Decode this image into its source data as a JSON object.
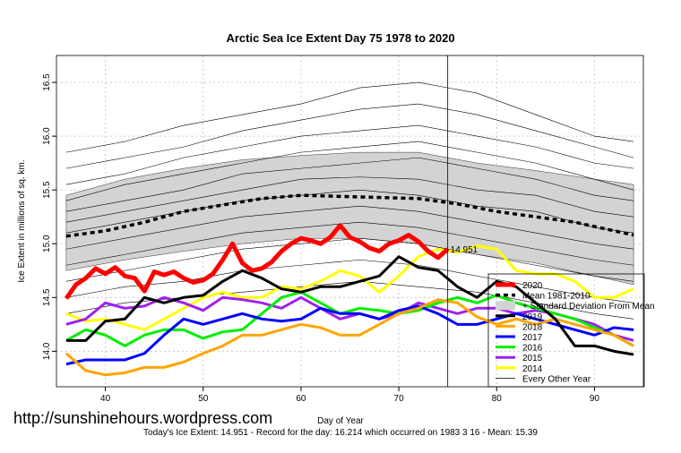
{
  "chart_data": {
    "type": "line",
    "title": "Arctic Sea Ice Extent Day 75 1978 to 2020",
    "xlabel": "Day of Year",
    "ylabel": "Ice Extent in millions of sq. km.",
    "xlim": [
      35,
      95
    ],
    "ylim": [
      13.67,
      16.75
    ],
    "xticks": [
      "40",
      "50",
      "60",
      "70",
      "80",
      "90"
    ],
    "yticks": [
      "14.0",
      "14.5",
      "15.0",
      "15.5",
      "16.0",
      "16.5"
    ],
    "grid": true,
    "marker_day": 75,
    "annotation": "14.951",
    "legend_position": "bottom-right",
    "legend": [
      "2020",
      "Mean 1981-2010",
      "+ Standard Deviation From Mean",
      "2019",
      "2018",
      "2017",
      "2016",
      "2015",
      "2014",
      "Every Other Year"
    ],
    "colors": {
      "2020": "#ff0000",
      "mean": "#000000",
      "band": "#d3d3d3",
      "2019": "#000000",
      "2018": "#ffa500",
      "2017": "#0000ff",
      "2016": "#00ee00",
      "2015": "#a020f0",
      "2014": "#ffff00",
      "other": "#000000"
    },
    "series": [
      {
        "name": "2020",
        "x": [
          36,
          37,
          38,
          39,
          40,
          41,
          42,
          43,
          44,
          45,
          46,
          47,
          48,
          49,
          50,
          51,
          52,
          53,
          54,
          55,
          56,
          57,
          58,
          59,
          60,
          61,
          62,
          63,
          64,
          65,
          66,
          67,
          68,
          69,
          70,
          71,
          72,
          73,
          74,
          75
        ],
        "values": [
          14.49,
          14.62,
          14.68,
          14.77,
          14.72,
          14.78,
          14.7,
          14.68,
          14.56,
          14.74,
          14.71,
          14.74,
          14.68,
          14.64,
          14.66,
          14.72,
          14.85,
          15.0,
          14.82,
          14.75,
          14.77,
          14.83,
          14.93,
          15.0,
          15.05,
          15.03,
          15.0,
          15.06,
          15.17,
          15.06,
          15.02,
          14.96,
          14.93,
          15.0,
          15.03,
          15.08,
          15.02,
          14.93,
          14.87,
          14.95
        ]
      },
      {
        "name": "Mean 1981-2010",
        "x": [
          36,
          40,
          44,
          48,
          52,
          56,
          60,
          64,
          68,
          72,
          76,
          80,
          84,
          88,
          92,
          94
        ],
        "values": [
          15.07,
          15.12,
          15.2,
          15.3,
          15.36,
          15.42,
          15.45,
          15.44,
          15.43,
          15.42,
          15.37,
          15.3,
          15.25,
          15.2,
          15.12,
          15.08
        ]
      },
      {
        "name": "Std band upper",
        "x": [
          36,
          42,
          48,
          54,
          60,
          66,
          72,
          78,
          84,
          90,
          94
        ],
        "values": [
          15.45,
          15.6,
          15.7,
          15.78,
          15.82,
          15.85,
          15.85,
          15.75,
          15.68,
          15.6,
          15.55
        ]
      },
      {
        "name": "Std band lower",
        "x": [
          36,
          42,
          48,
          54,
          60,
          66,
          72,
          78,
          84,
          90,
          94
        ],
        "values": [
          14.75,
          14.85,
          14.93,
          15.0,
          15.05,
          15.05,
          15.0,
          14.9,
          14.82,
          14.7,
          14.62
        ]
      },
      {
        "name": "2019",
        "x": [
          36,
          38,
          40,
          42,
          44,
          46,
          48,
          50,
          52,
          54,
          56,
          58,
          60,
          62,
          64,
          66,
          68,
          70,
          72,
          74,
          76,
          78,
          80,
          82,
          84,
          86,
          88,
          90,
          92,
          94
        ],
        "values": [
          14.1,
          14.1,
          14.28,
          14.3,
          14.5,
          14.45,
          14.5,
          14.52,
          14.65,
          14.75,
          14.68,
          14.58,
          14.55,
          14.6,
          14.6,
          14.65,
          14.7,
          14.88,
          14.78,
          14.75,
          14.6,
          14.5,
          14.65,
          14.6,
          14.45,
          14.3,
          14.05,
          14.05,
          14.0,
          13.97
        ]
      },
      {
        "name": "2018",
        "x": [
          36,
          38,
          40,
          42,
          44,
          46,
          48,
          50,
          52,
          54,
          56,
          58,
          60,
          62,
          64,
          66,
          68,
          70,
          72,
          74,
          76,
          78,
          80,
          82,
          84,
          86,
          88,
          90,
          92,
          94
        ],
        "values": [
          13.98,
          13.82,
          13.78,
          13.8,
          13.85,
          13.85,
          13.9,
          13.98,
          14.05,
          14.15,
          14.15,
          14.2,
          14.25,
          14.22,
          14.15,
          14.15,
          14.25,
          14.35,
          14.4,
          14.48,
          14.45,
          14.32,
          14.25,
          14.3,
          14.25,
          14.3,
          14.25,
          14.2,
          14.15,
          14.05
        ]
      },
      {
        "name": "2017",
        "x": [
          36,
          38,
          40,
          42,
          44,
          46,
          48,
          50,
          52,
          54,
          56,
          58,
          60,
          62,
          64,
          66,
          68,
          70,
          72,
          74,
          76,
          78,
          80,
          82,
          84,
          86,
          88,
          90,
          92,
          94
        ],
        "values": [
          13.88,
          13.92,
          13.92,
          13.92,
          13.98,
          14.15,
          14.3,
          14.25,
          14.3,
          14.35,
          14.3,
          14.28,
          14.3,
          14.4,
          14.35,
          14.35,
          14.3,
          14.38,
          14.42,
          14.35,
          14.25,
          14.25,
          14.3,
          14.35,
          14.3,
          14.25,
          14.2,
          14.15,
          14.22,
          14.2
        ]
      },
      {
        "name": "2016",
        "x": [
          36,
          38,
          40,
          42,
          44,
          46,
          48,
          50,
          52,
          54,
          56,
          58,
          60,
          62,
          64,
          66,
          68,
          70,
          72,
          74,
          76,
          78,
          80,
          82,
          84,
          86,
          88,
          90,
          92,
          94
        ],
        "values": [
          14.1,
          14.2,
          14.15,
          14.05,
          14.15,
          14.2,
          14.2,
          14.12,
          14.18,
          14.2,
          14.35,
          14.5,
          14.55,
          14.45,
          14.35,
          14.4,
          14.38,
          14.35,
          14.38,
          14.45,
          14.5,
          14.45,
          14.52,
          14.45,
          14.4,
          14.35,
          14.3,
          14.22,
          14.15,
          14.05
        ]
      },
      {
        "name": "2015",
        "x": [
          36,
          38,
          40,
          42,
          44,
          46,
          48,
          50,
          52,
          54,
          56,
          58,
          60,
          62,
          64,
          66,
          68,
          70,
          72,
          74,
          76,
          78,
          80,
          82,
          84,
          86,
          88,
          90,
          92,
          94
        ],
        "values": [
          14.25,
          14.3,
          14.45,
          14.4,
          14.42,
          14.5,
          14.45,
          14.38,
          14.5,
          14.48,
          14.45,
          14.4,
          14.5,
          14.4,
          14.3,
          14.35,
          14.3,
          14.35,
          14.45,
          14.4,
          14.35,
          14.4,
          14.4,
          14.35,
          14.38,
          14.35,
          14.3,
          14.25,
          14.15,
          14.1
        ]
      },
      {
        "name": "2014",
        "x": [
          36,
          38,
          40,
          42,
          44,
          46,
          48,
          50,
          52,
          54,
          56,
          58,
          60,
          62,
          64,
          66,
          68,
          70,
          72,
          74,
          76,
          78,
          80,
          82,
          84,
          86,
          88,
          90,
          92,
          94
        ],
        "values": [
          14.35,
          14.28,
          14.3,
          14.25,
          14.2,
          14.3,
          14.4,
          14.5,
          14.55,
          14.5,
          14.5,
          14.6,
          14.58,
          14.65,
          14.75,
          14.7,
          14.55,
          14.7,
          14.88,
          14.95,
          14.92,
          14.98,
          14.95,
          14.75,
          14.72,
          14.72,
          14.65,
          14.5,
          14.5,
          14.58
        ]
      }
    ],
    "other_years_x": [
      36,
      42,
      48,
      54,
      60,
      66,
      72,
      78,
      84,
      90,
      94
    ],
    "other_years": [
      [
        15.85,
        15.95,
        16.1,
        16.2,
        16.3,
        16.45,
        16.5,
        16.4,
        16.2,
        16.0,
        15.95
      ],
      [
        15.7,
        15.8,
        15.9,
        16.05,
        16.15,
        16.25,
        16.3,
        16.2,
        16.05,
        15.9,
        15.8
      ],
      [
        15.55,
        15.65,
        15.8,
        15.9,
        16.0,
        16.05,
        16.1,
        16.0,
        15.9,
        15.75,
        15.7
      ],
      [
        15.4,
        15.55,
        15.65,
        15.75,
        15.85,
        15.9,
        15.95,
        15.85,
        15.75,
        15.6,
        15.5
      ],
      [
        15.3,
        15.4,
        15.5,
        15.65,
        15.7,
        15.75,
        15.8,
        15.7,
        15.6,
        15.45,
        15.4
      ],
      [
        15.2,
        15.3,
        15.4,
        15.5,
        15.6,
        15.62,
        15.6,
        15.5,
        15.45,
        15.3,
        15.25
      ],
      [
        15.1,
        15.2,
        15.3,
        15.4,
        15.45,
        15.5,
        15.45,
        15.35,
        15.3,
        15.15,
        15.1
      ],
      [
        14.95,
        15.05,
        15.15,
        15.25,
        15.3,
        15.35,
        15.3,
        15.2,
        15.1,
        15.0,
        14.95
      ],
      [
        14.8,
        14.9,
        15.0,
        15.1,
        15.15,
        15.2,
        15.15,
        15.05,
        14.95,
        14.85,
        14.8
      ],
      [
        14.65,
        14.75,
        14.85,
        14.95,
        15.0,
        15.05,
        15.0,
        14.9,
        14.8,
        14.7,
        14.65
      ],
      [
        14.5,
        14.6,
        14.65,
        14.75,
        14.8,
        14.85,
        14.8,
        14.7,
        14.6,
        14.5,
        14.45
      ],
      [
        14.35,
        14.45,
        14.5,
        14.55,
        14.6,
        14.65,
        14.6,
        14.55,
        14.45,
        14.35,
        14.3
      ]
    ],
    "footer": "Today's Ice Extent: 14.951  - Record for the day: 16.214 which occurred on 1983 3 16  - Mean: 15.39"
  },
  "site": "http://sunshinehours.wordpress.com"
}
